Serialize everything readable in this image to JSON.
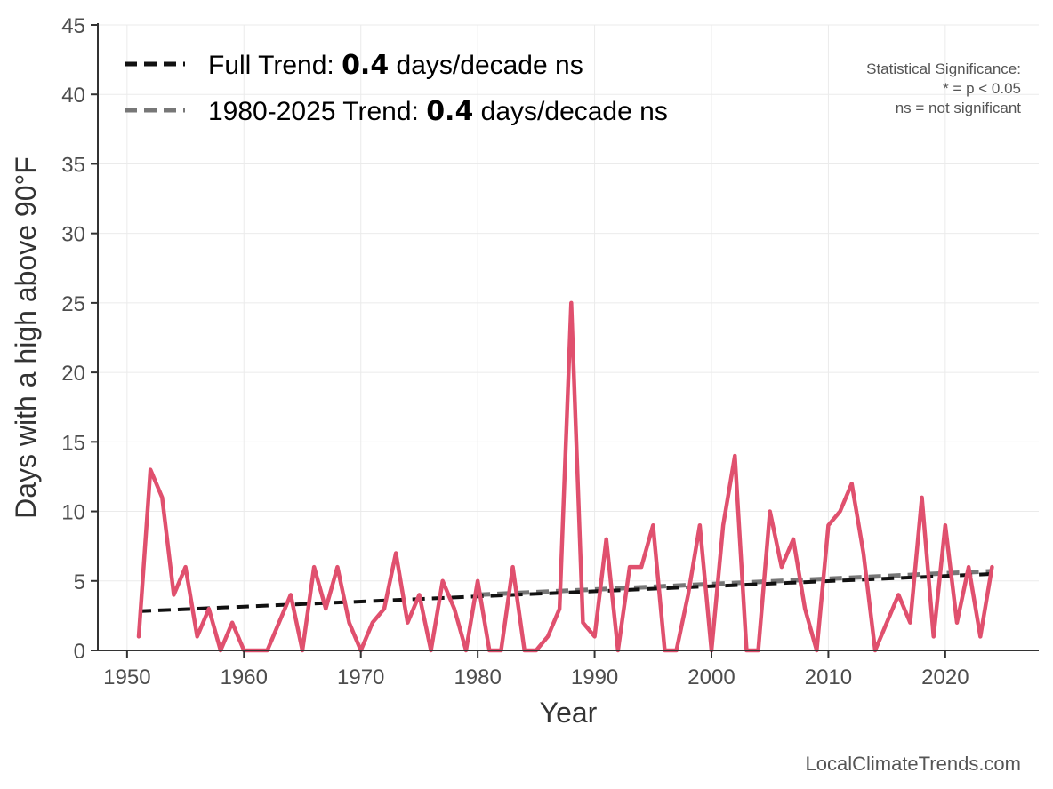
{
  "chart_data": {
    "type": "line",
    "xlabel": "Year",
    "ylabel": "Days with a high above 90°F",
    "xlim": [
      1947.5,
      2028
    ],
    "ylim": [
      0,
      45
    ],
    "x_ticks": [
      1950,
      1960,
      1970,
      1980,
      1990,
      2000,
      2010,
      2020
    ],
    "y_ticks": [
      0,
      5,
      10,
      15,
      20,
      25,
      30,
      35,
      40,
      45
    ],
    "grid": true,
    "series": [
      {
        "name": "Days above 90°F",
        "color": "#e0506e",
        "x": [
          1951,
          1952,
          1953,
          1954,
          1955,
          1956,
          1957,
          1958,
          1959,
          1960,
          1961,
          1962,
          1963,
          1964,
          1965,
          1966,
          1967,
          1968,
          1969,
          1970,
          1971,
          1972,
          1973,
          1974,
          1975,
          1976,
          1977,
          1978,
          1979,
          1980,
          1981,
          1982,
          1983,
          1984,
          1985,
          1986,
          1987,
          1988,
          1989,
          1990,
          1991,
          1992,
          1993,
          1994,
          1995,
          1996,
          1997,
          1998,
          1999,
          2000,
          2001,
          2002,
          2003,
          2004,
          2005,
          2006,
          2007,
          2008,
          2009,
          2010,
          2011,
          2012,
          2013,
          2014,
          2015,
          2016,
          2017,
          2018,
          2019,
          2020,
          2021,
          2022,
          2023,
          2024
        ],
        "values": [
          1,
          13,
          11,
          4,
          6,
          1,
          3,
          0,
          2,
          0,
          0,
          0,
          2,
          4,
          0,
          6,
          3,
          6,
          2,
          0,
          2,
          3,
          7,
          2,
          4,
          0,
          5,
          3,
          0,
          5,
          0,
          0,
          6,
          0,
          0,
          1,
          3,
          25,
          2,
          1,
          8,
          0,
          6,
          6,
          9,
          0,
          0,
          4,
          9,
          0,
          9,
          14,
          0,
          0,
          10,
          6,
          8,
          3,
          0,
          9,
          10,
          12,
          7,
          0,
          2,
          4,
          2,
          11,
          1,
          9,
          2,
          6,
          1,
          6
        ]
      }
    ],
    "trends": [
      {
        "name": "Full Trend",
        "x_start": 1951,
        "x_end": 2024,
        "y_start": 2.82,
        "y_end": 5.5,
        "color": "#111111"
      },
      {
        "name": "1980-2025 Trend",
        "x_start": 1980,
        "x_end": 2024,
        "y_start": 4.0,
        "y_end": 5.7,
        "color": "#777777"
      }
    ]
  },
  "legend": {
    "items": [
      {
        "prefix": "Full Trend: ",
        "value": "0.4",
        "suffix": " days/decade ns",
        "color": "#111111"
      },
      {
        "prefix": "1980-2025 Trend: ",
        "value": "0.4",
        "suffix": " days/decade ns",
        "color": "#777777"
      }
    ]
  },
  "significance_note": {
    "line1": "Statistical Significance:",
    "line2": "* = p < 0.05",
    "line3": "ns = not significant"
  },
  "credit": "LocalClimateTrends.com"
}
